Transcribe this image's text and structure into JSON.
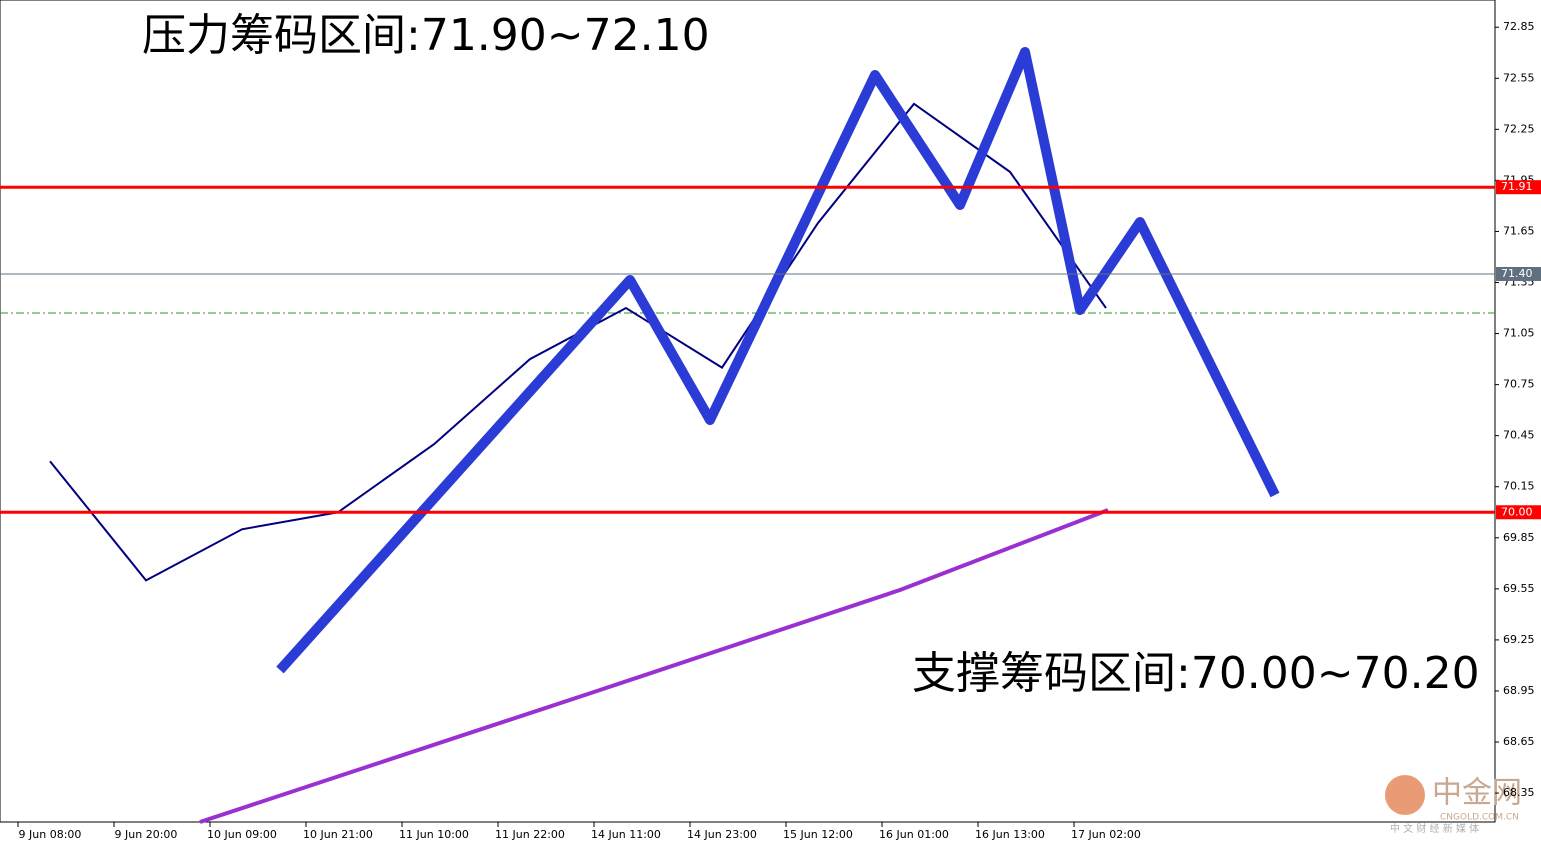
{
  "chart_data": {
    "type": "line",
    "annotations": [
      "压力筹码区间:71.90~72.10",
      "支撑筹码区间:70.00~70.20"
    ],
    "categories": [
      "9 Jun 08:00",
      "9 Jun 20:00",
      "10 Jun 09:00",
      "10 Jun 21:00",
      "11 Jun 10:00",
      "11 Jun 22:00",
      "14 Jun 11:00",
      "14 Jun 23:00",
      "15 Jun 12:00",
      "16 Jun 01:00",
      "16 Jun 13:00",
      "17 Jun 02:00"
    ],
    "series": [
      {
        "color": "#000080",
        "values": [
          70.3,
          69.6,
          69.9,
          70.0,
          70.4,
          70.9,
          71.2,
          70.85,
          71.7,
          72.4,
          72.0,
          71.2
        ]
      }
    ],
    "levels": [
      {
        "value": 71.91,
        "label": "71.91",
        "color": "#ff0000"
      },
      {
        "value": 71.4,
        "label": "71.40",
        "color": "#607080"
      },
      {
        "value": 70.0,
        "label": "70.00",
        "color": "#ff0000"
      }
    ],
    "ylim": [
      68.18,
      73.01
    ],
    "yticks": [
      72.85,
      72.55,
      72.25,
      71.95,
      71.65,
      71.35,
      71.05,
      70.75,
      70.45,
      70.15,
      69.85,
      69.55,
      69.25,
      68.95,
      68.65,
      68.35
    ],
    "watermark": {
      "name": "中金网",
      "site": "CNGOLD.COM.CN",
      "slogan": "中 文 财 经 新 媒 体"
    }
  }
}
